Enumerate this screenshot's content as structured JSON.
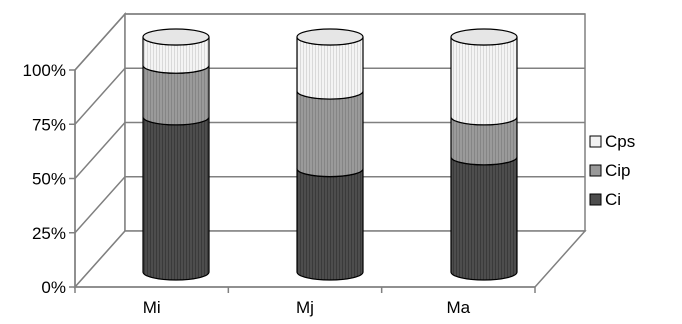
{
  "chart_data": {
    "type": "bar",
    "stacked": true,
    "percent_stacked": true,
    "three_d": true,
    "bar_shape": "cylinder",
    "title": "",
    "xlabel": "",
    "ylabel": "",
    "ylim": [
      0,
      100
    ],
    "y_ticks": [
      "0%",
      "25%",
      "50%",
      "75%",
      "100%"
    ],
    "grid": true,
    "legend_position": "right",
    "categories": [
      "Mi",
      "Mj",
      "Ma"
    ],
    "series": [
      {
        "name": "Ci",
        "values": [
          66,
          44,
          49
        ],
        "color": "#4d4d4d"
      },
      {
        "name": "Cip",
        "values": [
          22,
          33,
          17
        ],
        "color": "#999999"
      },
      {
        "name": "Cps",
        "values": [
          12,
          23,
          34
        ],
        "color": "#f2f2f2"
      }
    ],
    "legend_order": [
      "Cps",
      "Cip",
      "Ci"
    ]
  }
}
